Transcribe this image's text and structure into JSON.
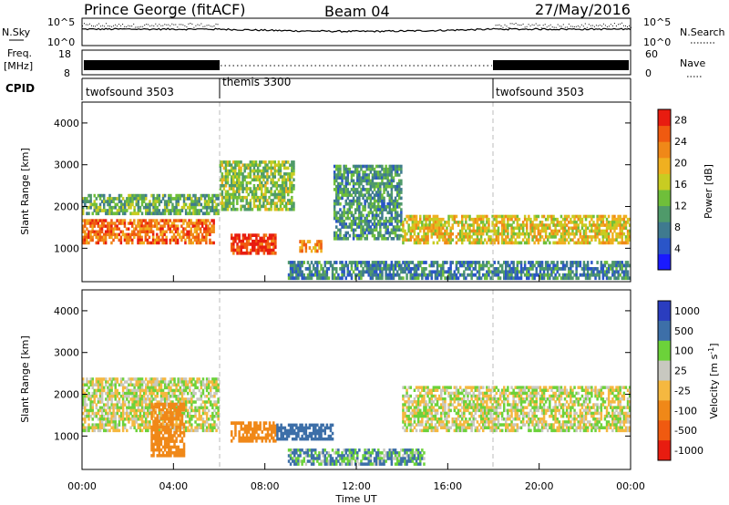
{
  "header": {
    "station": "Prince George (fitACF)",
    "beam": "Beam 04",
    "date": "27/May/2016"
  },
  "sky_panel": {
    "left_label": "N.Sky",
    "left_ticks": [
      "10^5",
      "10^0"
    ],
    "right_label": "N.Search",
    "right_ticks": [
      "10^5",
      "10^0"
    ]
  },
  "freq_panel": {
    "left_label_1": "Freq.",
    "left_label_2": "[MHz]",
    "left_ticks": [
      "18",
      "8"
    ],
    "right_label": "Nave",
    "right_ticks": [
      "60",
      "0"
    ]
  },
  "cpid_panel": {
    "label": "CPID",
    "segments": [
      {
        "name": "twofsound 3503",
        "start_hour": 0,
        "end_hour": 6
      },
      {
        "name": "themis 3300",
        "start_hour": 6,
        "end_hour": 18
      },
      {
        "name": "twofsound 3503",
        "start_hour": 18,
        "end_hour": 24
      }
    ]
  },
  "colors": {
    "power": [
      "#1a1aff",
      "#2a55c8",
      "#3f7a8f",
      "#4f9a6a",
      "#6fbf3a",
      "#c8cc22",
      "#f0b020",
      "#f08818",
      "#f05a10",
      "#e81c10"
    ],
    "velocity": [
      "#2a3dbf",
      "#3d6fa8",
      "#4f9a6a",
      "#6cd23a",
      "#c8c8c0",
      "#f5b840",
      "#f08818",
      "#f05a10",
      "#e81c10"
    ]
  },
  "chart_data": [
    {
      "type": "heatmap",
      "title": "",
      "ylabel": "Slant Range [km]",
      "xlabel": "",
      "xlim": [
        0,
        24
      ],
      "ylim": [
        200,
        4500
      ],
      "x_ticks": [
        "00:00",
        "04:00",
        "08:00",
        "12:00",
        "16:00",
        "20:00",
        "00:00"
      ],
      "y_ticks": [
        1000,
        2000,
        3000,
        4000
      ],
      "colorbar": {
        "label": "Power [dB]",
        "ticks": [
          4,
          8,
          12,
          16,
          20,
          24,
          28
        ],
        "range": [
          0,
          30
        ]
      },
      "features": [
        {
          "hours": [
            0,
            5.8
          ],
          "range_km": [
            1100,
            1700
          ],
          "value_db": 24
        },
        {
          "hours": [
            0,
            6
          ],
          "range_km": [
            1800,
            2300
          ],
          "value_db": 12
        },
        {
          "hours": [
            6.5,
            8.5
          ],
          "range_km": [
            850,
            1350
          ],
          "value_db": 28
        },
        {
          "hours": [
            6,
            9.3
          ],
          "range_km": [
            1900,
            3100
          ],
          "value_db": 14
        },
        {
          "hours": [
            9.5,
            10.5
          ],
          "range_km": [
            900,
            1200
          ],
          "value_db": 22
        },
        {
          "hours": [
            11,
            14
          ],
          "range_km": [
            1200,
            3000
          ],
          "value_db": 10
        },
        {
          "hours": [
            14,
            24
          ],
          "range_km": [
            1100,
            1800
          ],
          "value_db": 18
        },
        {
          "hours": [
            9,
            24
          ],
          "range_km": [
            250,
            700
          ],
          "value_db": 8
        }
      ]
    },
    {
      "type": "heatmap",
      "title": "",
      "ylabel": "Slant Range [km]",
      "xlabel": "Time UT",
      "xlim": [
        0,
        24
      ],
      "ylim": [
        200,
        4500
      ],
      "x_ticks": [
        "00:00",
        "04:00",
        "08:00",
        "12:00",
        "16:00",
        "20:00",
        "00:00"
      ],
      "y_ticks": [
        1000,
        2000,
        3000,
        4000
      ],
      "colorbar": {
        "label": "Velocity [m s^-1]",
        "ticks": [
          1000,
          500,
          100,
          25,
          -25,
          -100,
          -500,
          -1000
        ],
        "range": [
          -1200,
          1200
        ]
      },
      "features": [
        {
          "hours": [
            0,
            6
          ],
          "range_km": [
            1100,
            2400
          ],
          "value_ms": 0
        },
        {
          "hours": [
            3,
            4.5
          ],
          "range_km": [
            500,
            1800
          ],
          "value_ms": -400
        },
        {
          "hours": [
            6.5,
            8.5
          ],
          "range_km": [
            850,
            1350
          ],
          "value_ms": -300
        },
        {
          "hours": [
            8.5,
            11
          ],
          "range_km": [
            900,
            1300
          ],
          "value_ms": 300
        },
        {
          "hours": [
            9,
            15
          ],
          "range_km": [
            300,
            700
          ],
          "value_ms": 100
        },
        {
          "hours": [
            14,
            24
          ],
          "range_km": [
            1100,
            2200
          ],
          "value_ms": 0
        }
      ]
    }
  ]
}
